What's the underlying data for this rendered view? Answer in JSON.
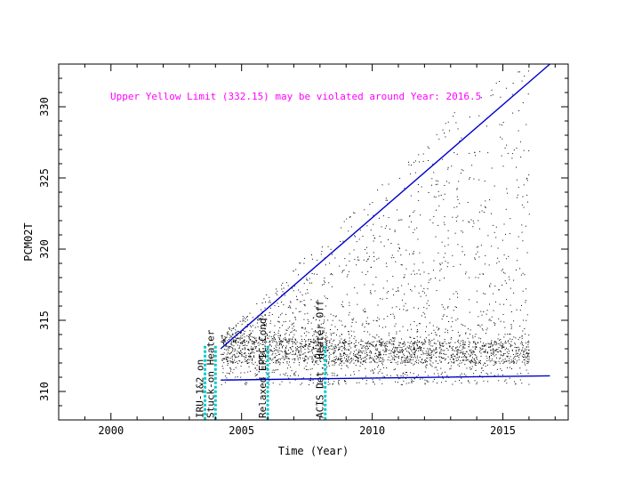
{
  "chart_data": {
    "type": "scatter",
    "xlabel": "Time (Year)",
    "ylabel": "PCM02T",
    "xlim": [
      1998.0,
      2017.5
    ],
    "ylim": [
      308.0,
      333.0
    ],
    "x_ticks": [
      2000,
      2005,
      2010,
      2015
    ],
    "y_ticks": [
      310,
      315,
      320,
      325,
      330
    ],
    "grid": false,
    "colors": {
      "points": "#000000",
      "trend": "#0000cc",
      "event_marker": "#00cccc",
      "annotation": "#ff00ff"
    },
    "annotation": {
      "text": "Upper Yellow  Limit (332.15) may be violated around Year: 2016.5"
    },
    "point_cloud": {
      "x_range": [
        2004.2,
        2016.0
      ],
      "core_band": [
        312.0,
        313.5
      ],
      "lower_envelope": 310.5,
      "upper_envelope": [
        [
          2004.2,
          314.0
        ],
        [
          2006.0,
          317.0
        ],
        [
          2008.0,
          320.5
        ],
        [
          2010.0,
          324.0
        ],
        [
          2012.0,
          327.5
        ],
        [
          2014.0,
          331.5
        ],
        [
          2016.0,
          333.0
        ]
      ]
    },
    "trend_lines": [
      {
        "x": [
          2004.2,
          2016.8
        ],
        "y": [
          313.0,
          333.0
        ]
      },
      {
        "x": [
          2004.2,
          2016.8
        ],
        "y": [
          310.8,
          311.1
        ]
      }
    ],
    "events": [
      {
        "x": 2003.6,
        "label": "IRU-1&2 on"
      },
      {
        "x": 2004.0,
        "label": "Stuck-on Heater"
      },
      {
        "x": 2006.0,
        "label": "Relaxed EPIC Cond."
      },
      {
        "x": 2008.2,
        "label": "ACIS Det. Heater Off"
      }
    ]
  }
}
